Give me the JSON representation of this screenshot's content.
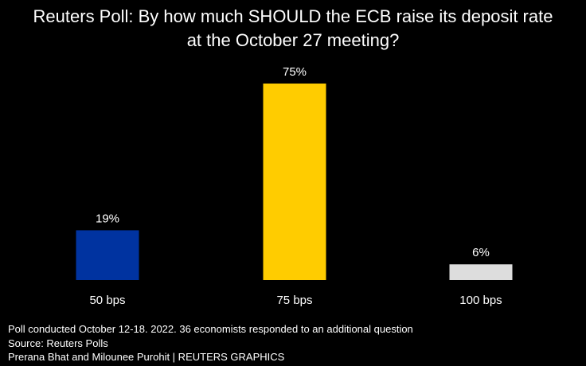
{
  "chart_data": {
    "type": "bar",
    "title_lines": [
      "Reuters Poll: By how much SHOULD the ECB raise its deposit rate",
      "at the October 27 meeting?"
    ],
    "categories": [
      "50 bps",
      "75 bps",
      "100 bps"
    ],
    "values": [
      19,
      75,
      6
    ],
    "value_labels": [
      "19%",
      "75%",
      "6%"
    ],
    "colors": [
      "#0033a0",
      "#ffcc00",
      "#dddddd"
    ],
    "ylim": [
      0,
      75
    ],
    "grid": false,
    "legend": "none"
  },
  "footer": {
    "note": "Poll conducted October 12-18. 2022. 36 economists responded to an additional question",
    "source": "Source: Reuters Polls",
    "credit": "Prerana Bhat and Milounee Purohit | REUTERS GRAPHICS"
  },
  "colors": {
    "background": "#000000",
    "text": "#ffffff"
  }
}
